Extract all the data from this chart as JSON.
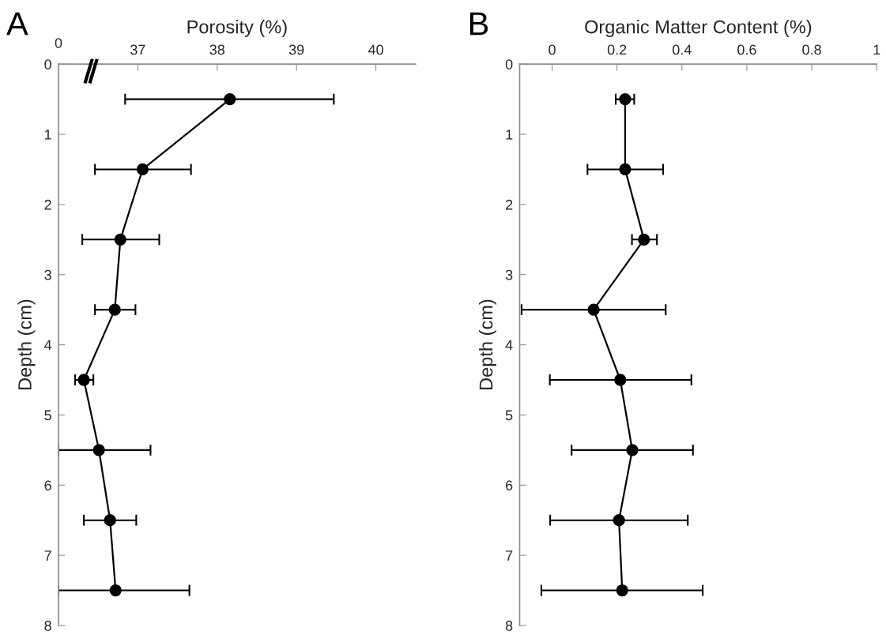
{
  "chart_data": [
    {
      "type": "line",
      "title": "A",
      "xlabel": "Porosity (%)",
      "ylabel": "Depth (cm)",
      "series": [
        {
          "color": "#000000",
          "x": [
            38.16,
            37.06,
            36.78,
            36.71,
            36.32,
            36.51,
            36.65,
            36.72
          ],
          "values": [
            0.5,
            1.5,
            2.5,
            3.5,
            4.5,
            5.5,
            6.5,
            7.5
          ],
          "xerrors": [
            [
              36.84,
              39.47
            ],
            [
              36.46,
              37.67
            ],
            [
              36.3,
              37.27
            ],
            [
              36.46,
              36.97
            ],
            [
              36.21,
              36.44
            ],
            [
              36.0,
              37.16
            ],
            [
              36.32,
              36.98
            ],
            [
              36.0,
              37.65
            ]
          ]
        }
      ],
      "annotations": [
        "0"
      ],
      "xlim": [
        36,
        40.5
      ],
      "xticks": [
        37,
        38,
        39,
        40
      ],
      "ylim": [
        8,
        0
      ],
      "yticks": [
        0,
        1,
        2,
        3,
        4,
        5,
        6,
        7,
        8
      ],
      "marker": "circle",
      "line_style": "solid",
      "grid": false,
      "legend": false
    },
    {
      "type": "line",
      "title": "B",
      "xlabel": "Organic Matter Content (%)",
      "ylabel": "Depth (cm)",
      "series": [
        {
          "color": "#000000",
          "x": [
            0.225,
            0.225,
            0.283,
            0.128,
            0.21,
            0.247,
            0.206,
            0.216
          ],
          "values": [
            0.5,
            1.5,
            2.5,
            3.5,
            4.5,
            5.5,
            6.5,
            7.5
          ],
          "xerrors": [
            [
              0.196,
              0.253
            ],
            [
              0.109,
              0.342
            ],
            [
              0.246,
              0.323
            ],
            [
              -0.094,
              0.35
            ],
            [
              -0.007,
              0.429
            ],
            [
              0.06,
              0.434
            ],
            [
              -0.006,
              0.418
            ],
            [
              -0.033,
              0.464
            ]
          ]
        }
      ],
      "xlim": [
        -0.1,
        1
      ],
      "xticks": [
        0,
        0.2,
        0.4,
        0.6,
        0.8,
        1
      ],
      "ylim": [
        8,
        0
      ],
      "yticks": [
        0,
        1,
        2,
        3,
        4,
        5,
        6,
        7,
        8
      ],
      "marker": "circle",
      "line_style": "solid",
      "grid": false,
      "legend": false
    }
  ]
}
